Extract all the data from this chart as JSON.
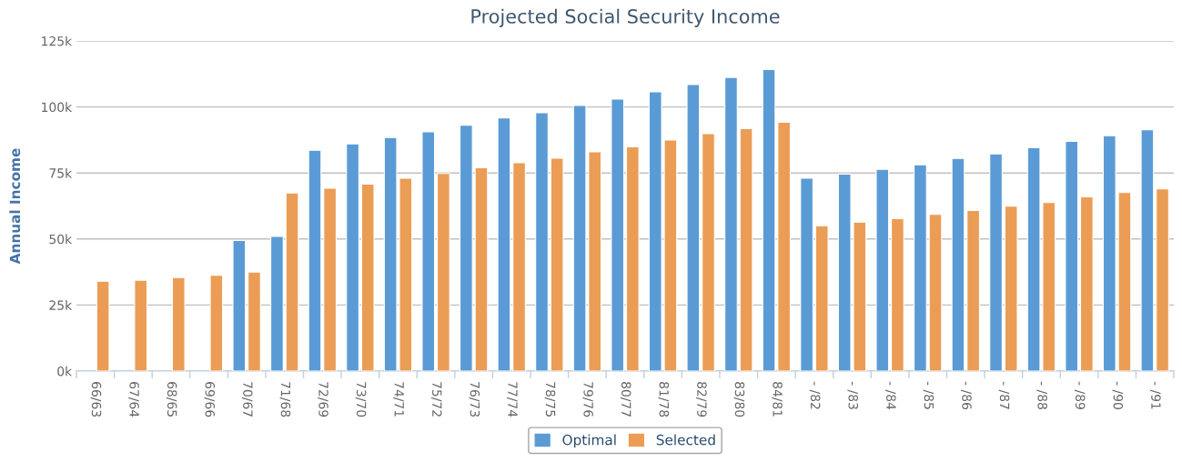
{
  "chart_data": {
    "type": "bar",
    "title": "Projected Social Security Income",
    "ylabel": "Annual Income",
    "categories": [
      "66/63",
      "67/64",
      "68/65",
      "69/66",
      "70/67",
      "71/68",
      "72/69",
      "73/70",
      "74/71",
      "75/72",
      "76/73",
      "77/74",
      "78/75",
      "79/76",
      "80/77",
      "81/78",
      "82/79",
      "83/80",
      "84/81",
      "- /82",
      "- /83",
      "- /84",
      "- /85",
      "- /86",
      "- /87",
      "- /88",
      "- /89",
      "- /90",
      "- /91"
    ],
    "series": [
      {
        "name": "Optimal",
        "color": "#5b9bd5",
        "values": [
          null,
          null,
          null,
          null,
          49.4,
          51.0,
          83.6,
          86.0,
          88.4,
          90.6,
          93.1,
          95.8,
          97.8,
          100.6,
          103.0,
          105.7,
          108.5,
          111.2,
          114.2,
          73.0,
          74.6,
          76.4,
          78.1,
          80.5,
          82.2,
          84.6,
          87.0,
          89.1,
          91.4
        ]
      },
      {
        "name": "Selected",
        "color": "#eb9d55",
        "values": [
          34.0,
          34.4,
          35.4,
          36.3,
          37.5,
          67.4,
          69.2,
          70.8,
          73.0,
          74.8,
          77.0,
          78.9,
          80.6,
          83.0,
          84.9,
          87.5,
          89.9,
          91.8,
          94.2,
          55.0,
          56.4,
          57.7,
          59.3,
          60.8,
          62.4,
          63.8,
          66.0,
          67.6,
          69.0
        ]
      }
    ],
    "ylim": [
      0,
      125
    ],
    "yticks": [
      {
        "value": 0,
        "label": "0k"
      },
      {
        "value": 25,
        "label": "25k"
      },
      {
        "value": 50,
        "label": "50k"
      },
      {
        "value": 75,
        "label": "75k"
      },
      {
        "value": 100,
        "label": "100k"
      },
      {
        "value": 125,
        "label": "125k"
      }
    ],
    "grid": "y",
    "legend": "bottom"
  }
}
